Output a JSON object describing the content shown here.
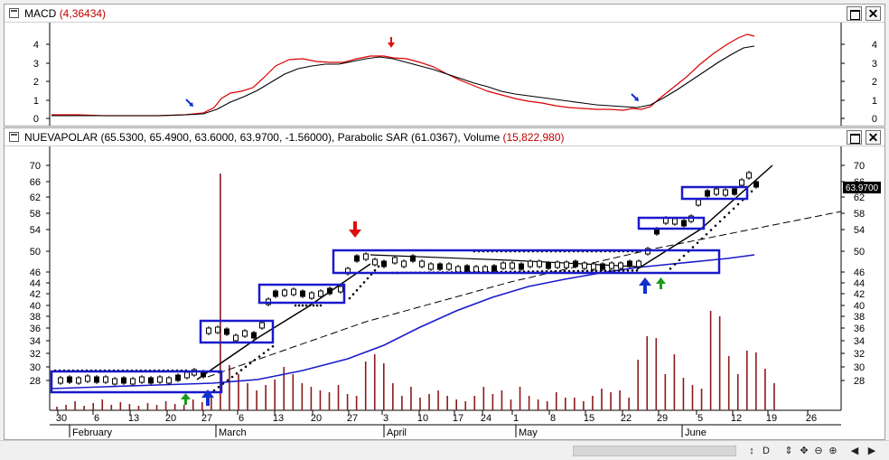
{
  "macd_window": {
    "title": "MACD",
    "value": "(4,36434)",
    "axis_ticks": [
      "4",
      "3",
      "2",
      "1",
      "0"
    ]
  },
  "price_window": {
    "title": "NUEVAPOLAR (65.5300, 65.4900, 63.6000, 63.9700, -1.56000), Parabolic SAR (61.0367), Volume",
    "volume_value": "(15,822,980)",
    "last_price": "63.9700",
    "axis_ticks": [
      "70",
      "66",
      "62",
      "58",
      "54",
      "50",
      "46",
      "44",
      "42",
      "40",
      "38",
      "36",
      "34",
      "32",
      "30",
      "28"
    ]
  },
  "x_axis": {
    "day_ticks": [
      "30",
      "6",
      "13",
      "20",
      "27",
      "6",
      "13",
      "20",
      "27",
      "3",
      "10",
      "17",
      "24",
      "1",
      "8",
      "15",
      "22",
      "29",
      "5",
      "12",
      "19",
      "26"
    ],
    "months": [
      "February",
      "March",
      "April",
      "May",
      "June"
    ]
  },
  "scrollbar": {
    "icons": [
      "scroll-lock-icon",
      "draw-icon",
      "move-icon",
      "crosshair-icon",
      "zoom-out-icon",
      "zoom-in-icon",
      "scroll-left-icon",
      "scroll-right-icon"
    ],
    "glyphs": [
      "↕",
      "D",
      "⇕",
      "✥",
      "⊖",
      "⊕",
      "◀",
      "▶"
    ]
  },
  "colors": {
    "macd_line": "#000000",
    "signal_line": "#dd0000",
    "sma_line": "#1a1acc",
    "box": "#1a1acc",
    "volume": "#8b1a1a",
    "up_arrow": "#1030d0",
    "green_arrow": "#1a9a1a",
    "down_arrow": "#dd1010"
  }
}
